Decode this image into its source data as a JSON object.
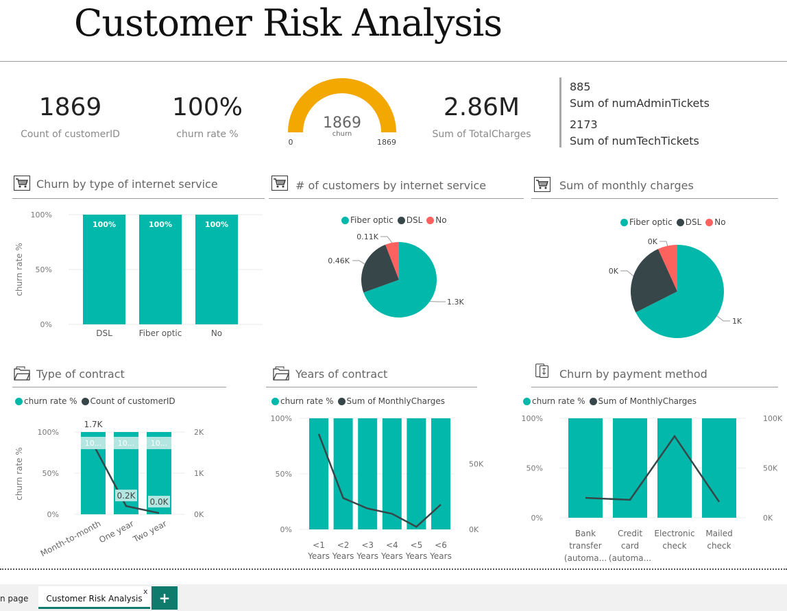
{
  "page_title": "Customer Risk Analysis",
  "kpis": {
    "count_value": "1869",
    "count_label": "Count of customerID",
    "churn_value": "100%",
    "churn_label": "churn rate %",
    "gauge_value": "1869",
    "gauge_label": "churn",
    "gauge_min": "0",
    "gauge_max": "1869",
    "gauge_fill_fraction": 1.0,
    "charges_value": "2.86M",
    "charges_label": "Sum of TotalCharges",
    "admin_value": "885",
    "admin_label": "Sum of numAdminTickets",
    "tech_value": "2173",
    "tech_label": "Sum of numTechTickets"
  },
  "colors": {
    "teal": "#01B8AA",
    "dark": "#374649",
    "red": "#FD625E",
    "gauge": "#F2A800",
    "tab_accent": "#0f7b6c"
  },
  "icons": {
    "cart": "cart-icon",
    "folder": "folder-icon",
    "payment": "payment-icon",
    "add": "plus-icon"
  },
  "visuals": {
    "churn_internet": {
      "title": "Churn by type of internet service",
      "ylabel": "churn rate %",
      "yticks": [
        "100%",
        "50%",
        "0%"
      ],
      "categories": [
        "DSL",
        "Fiber optic",
        "No"
      ],
      "data_labels": [
        "100%",
        "100%",
        "100%"
      ]
    },
    "customers_internet": {
      "title": "# of customers by internet service",
      "legend": [
        "Fiber optic",
        "DSL",
        "No"
      ],
      "slice_labels": [
        "1.3K",
        "0.46K",
        "0.11K"
      ]
    },
    "monthly_charges": {
      "title": "Sum of monthly charges",
      "legend": [
        "Fiber optic",
        "DSL",
        "No"
      ],
      "slice_labels": [
        "1K",
        "0K",
        "0K"
      ]
    },
    "type_contract": {
      "title": "Type of contract",
      "legend": [
        "churn rate %",
        "Count of customerID"
      ],
      "ylabel": "churn rate %",
      "yticks_left": [
        "100%",
        "50%",
        "0%"
      ],
      "yticks_right": [
        "2K",
        "1K",
        "0K"
      ],
      "categories": [
        "Month-to-month",
        "One year",
        "Two year"
      ],
      "bar_labels": [
        "10...",
        "10...",
        "10..."
      ],
      "line_labels": [
        "1.7K",
        "0.2K",
        "0.0K"
      ]
    },
    "years_contract": {
      "title": "Years of contract",
      "legend": [
        "churn rate %",
        "Sum of MonthlyCharges"
      ],
      "yticks_left": [
        "100%",
        "50%",
        "0%"
      ],
      "yticks_right": [
        "50K",
        "0K"
      ],
      "categories": [
        [
          "<1",
          "Years"
        ],
        [
          "<2",
          "Years"
        ],
        [
          "<3",
          "Years"
        ],
        [
          "<4",
          "Years"
        ],
        [
          "<5",
          "Years"
        ],
        [
          "<6",
          "Years"
        ]
      ]
    },
    "payment_method": {
      "title": "Churn by payment method",
      "legend": [
        "churn rate %",
        "Sum of MonthlyCharges"
      ],
      "yticks_left": [
        "100%",
        "50%",
        "0%"
      ],
      "yticks_right": [
        "100K",
        "50K",
        "0K"
      ],
      "categories": [
        [
          "Bank",
          "transfer",
          "(automa..."
        ],
        [
          "Credit",
          "card",
          "(automa..."
        ],
        [
          "Electronic",
          "check"
        ],
        [
          "Mailed",
          "check"
        ]
      ]
    }
  },
  "tabs": {
    "previous": "n page",
    "active": "Customer Risk Analysis",
    "close": "x",
    "add": "+"
  },
  "chart_data": [
    {
      "type": "bar",
      "title": "Churn by type of internet service",
      "categories": [
        "DSL",
        "Fiber optic",
        "No"
      ],
      "series": [
        {
          "name": "churn rate %",
          "values": [
            100,
            100,
            100
          ]
        }
      ],
      "ylabel": "churn rate %",
      "ylim": [
        0,
        100
      ]
    },
    {
      "type": "pie",
      "title": "# of customers by internet service",
      "categories": [
        "Fiber optic",
        "DSL",
        "No"
      ],
      "values": [
        1300,
        460,
        110
      ]
    },
    {
      "type": "pie",
      "title": "Sum of monthly charges",
      "categories": [
        "Fiber optic",
        "DSL",
        "No"
      ],
      "values": [
        1000,
        380,
        100
      ]
    },
    {
      "type": "bar",
      "title": "Type of contract",
      "categories": [
        "Month-to-month",
        "One year",
        "Two year"
      ],
      "series": [
        {
          "name": "churn rate %",
          "values": [
            100,
            100,
            100
          ]
        },
        {
          "name": "Count of customerID",
          "values": [
            1700,
            200,
            30
          ]
        }
      ],
      "ylim": [
        0,
        100
      ],
      "y2lim": [
        0,
        2000
      ]
    },
    {
      "type": "bar",
      "title": "Years of contract",
      "categories": [
        "<1 Years",
        "<2 Years",
        "<3 Years",
        "<4 Years",
        "<5 Years",
        "<6 Years"
      ],
      "series": [
        {
          "name": "churn rate %",
          "values": [
            100,
            100,
            100,
            100,
            100,
            100
          ]
        },
        {
          "name": "Sum of MonthlyCharges",
          "values": [
            73000,
            24000,
            16000,
            12000,
            2000,
            19000
          ]
        }
      ],
      "ylim": [
        0,
        100
      ],
      "y2lim": [
        0,
        85000
      ]
    },
    {
      "type": "bar",
      "title": "Churn by payment method",
      "categories": [
        "Bank transfer (automa...",
        "Credit card (automa...",
        "Electronic check",
        "Mailed check"
      ],
      "series": [
        {
          "name": "churn rate %",
          "values": [
            100,
            100,
            100,
            100
          ]
        },
        {
          "name": "Sum of MonthlyCharges",
          "values": [
            20000,
            18000,
            82000,
            16000
          ]
        }
      ],
      "ylim": [
        0,
        100
      ],
      "y2lim": [
        0,
        100000
      ]
    }
  ]
}
